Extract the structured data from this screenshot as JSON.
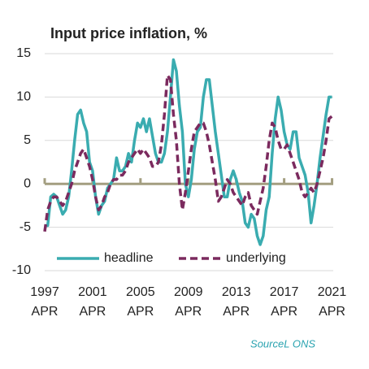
{
  "chart_data": {
    "type": "line",
    "title": "Input price inflation, %",
    "source": "SourceL ONS",
    "x": [
      1997.25,
      1997.5,
      1997.75,
      1998,
      1998.25,
      1998.5,
      1998.75,
      1999,
      1999.25,
      1999.5,
      1999.75,
      2000,
      2000.25,
      2000.5,
      2000.75,
      2001,
      2001.25,
      2001.5,
      2001.75,
      2002,
      2002.25,
      2002.5,
      2002.75,
      2003,
      2003.25,
      2003.5,
      2003.75,
      2004,
      2004.25,
      2004.5,
      2004.75,
      2005,
      2005.25,
      2005.5,
      2005.75,
      2006,
      2006.25,
      2006.5,
      2006.75,
      2007,
      2007.25,
      2007.5,
      2007.75,
      2008,
      2008.25,
      2008.5,
      2008.75,
      2009,
      2009.25,
      2009.5,
      2009.75,
      2010,
      2010.25,
      2010.5,
      2010.75,
      2011,
      2011.25,
      2011.5,
      2011.75,
      2012,
      2012.25,
      2012.5,
      2012.75,
      2013,
      2013.25,
      2013.5,
      2013.75,
      2014,
      2014.25,
      2014.5,
      2014.75,
      2015,
      2015.25,
      2015.5,
      2015.75,
      2016,
      2016.25,
      2016.5,
      2016.75,
      2017,
      2017.25,
      2017.5,
      2017.75,
      2018,
      2018.25,
      2018.5,
      2018.75,
      2019,
      2019.25,
      2019.5,
      2019.75,
      2020,
      2020.25,
      2020.5,
      2020.75,
      2021,
      2021.25
    ],
    "series": [
      {
        "name": "headline",
        "color": "#3aacb0",
        "dash": false,
        "values": [
          -4.8,
          -4.8,
          -1.5,
          -1.2,
          -1.5,
          -2.5,
          -3.5,
          -3,
          -1.5,
          1.5,
          5,
          8,
          8.5,
          7,
          6,
          2.5,
          1.5,
          -1.5,
          -3.5,
          -2.5,
          -2,
          -0.5,
          0,
          0.5,
          3,
          1.5,
          1.5,
          2,
          3.5,
          2.5,
          5,
          7,
          6.5,
          7.5,
          6,
          7.5,
          5.5,
          3.5,
          2.5,
          2.5,
          3.5,
          6,
          10,
          14.3,
          13,
          9,
          6,
          0,
          -1.5,
          0.5,
          4,
          6,
          6.5,
          10,
          12,
          12,
          9,
          6,
          3.5,
          1,
          -1.5,
          -1.5,
          0.5,
          1.5,
          0.5,
          -1,
          -2,
          -4.5,
          -5,
          -3.5,
          -4,
          -6,
          -7,
          -6,
          -3,
          -1.5,
          3.5,
          7.5,
          10,
          8.5,
          6,
          4.5,
          4,
          6,
          6,
          3,
          2,
          1,
          -1,
          -4.5,
          -2.5,
          0,
          3,
          5.5,
          8,
          10,
          10
        ]
      },
      {
        "name": "underlying",
        "color": "#7b2a5e",
        "dash": true,
        "values": [
          -5.5,
          -3,
          -2,
          -1.5,
          -1.5,
          -2,
          -2.5,
          -2,
          -1,
          0,
          1.5,
          2.5,
          3.5,
          4,
          3,
          2,
          0.5,
          -1.5,
          -3,
          -2.5,
          -1.5,
          -1,
          0,
          0.5,
          0.5,
          1,
          1,
          1.5,
          2.5,
          3,
          3.5,
          4,
          3.5,
          4,
          3.5,
          3,
          2,
          2,
          2.5,
          4.5,
          8,
          12.5,
          12,
          8,
          5,
          0,
          -3,
          -1,
          1.5,
          4,
          6,
          6.5,
          7,
          7,
          6,
          4.5,
          2.5,
          0.5,
          -2,
          -1.5,
          -0.5,
          0.5,
          0,
          -1,
          -1.5,
          -2,
          -2.5,
          -1.5,
          -1,
          -2.5,
          -3,
          -3.5,
          -2,
          -0.5,
          2,
          5,
          7,
          6.5,
          5,
          4,
          4,
          4.5,
          3.5,
          2.5,
          1.5,
          0.5,
          -1,
          -1.5,
          -1,
          -0.5,
          -1,
          0,
          1.5,
          3,
          5,
          7.5,
          7.8
        ]
      }
    ],
    "xlim": [
      1997.25,
      2021.35
    ],
    "xticks": [
      {
        "value": 1997.25,
        "label": "1997 APR"
      },
      {
        "value": 2001.25,
        "label": "2001 APR"
      },
      {
        "value": 2005.25,
        "label": "2005 APR"
      },
      {
        "value": 2009.25,
        "label": "2009 APR"
      },
      {
        "value": 2013.25,
        "label": "2013 APR"
      },
      {
        "value": 2017.25,
        "label": "2017 APR"
      },
      {
        "value": 2021.25,
        "label": "2021 APR"
      }
    ],
    "ylim": [
      -10,
      15
    ],
    "yticks": [
      -10,
      -5,
      0,
      5,
      10,
      15
    ],
    "grid": true
  }
}
